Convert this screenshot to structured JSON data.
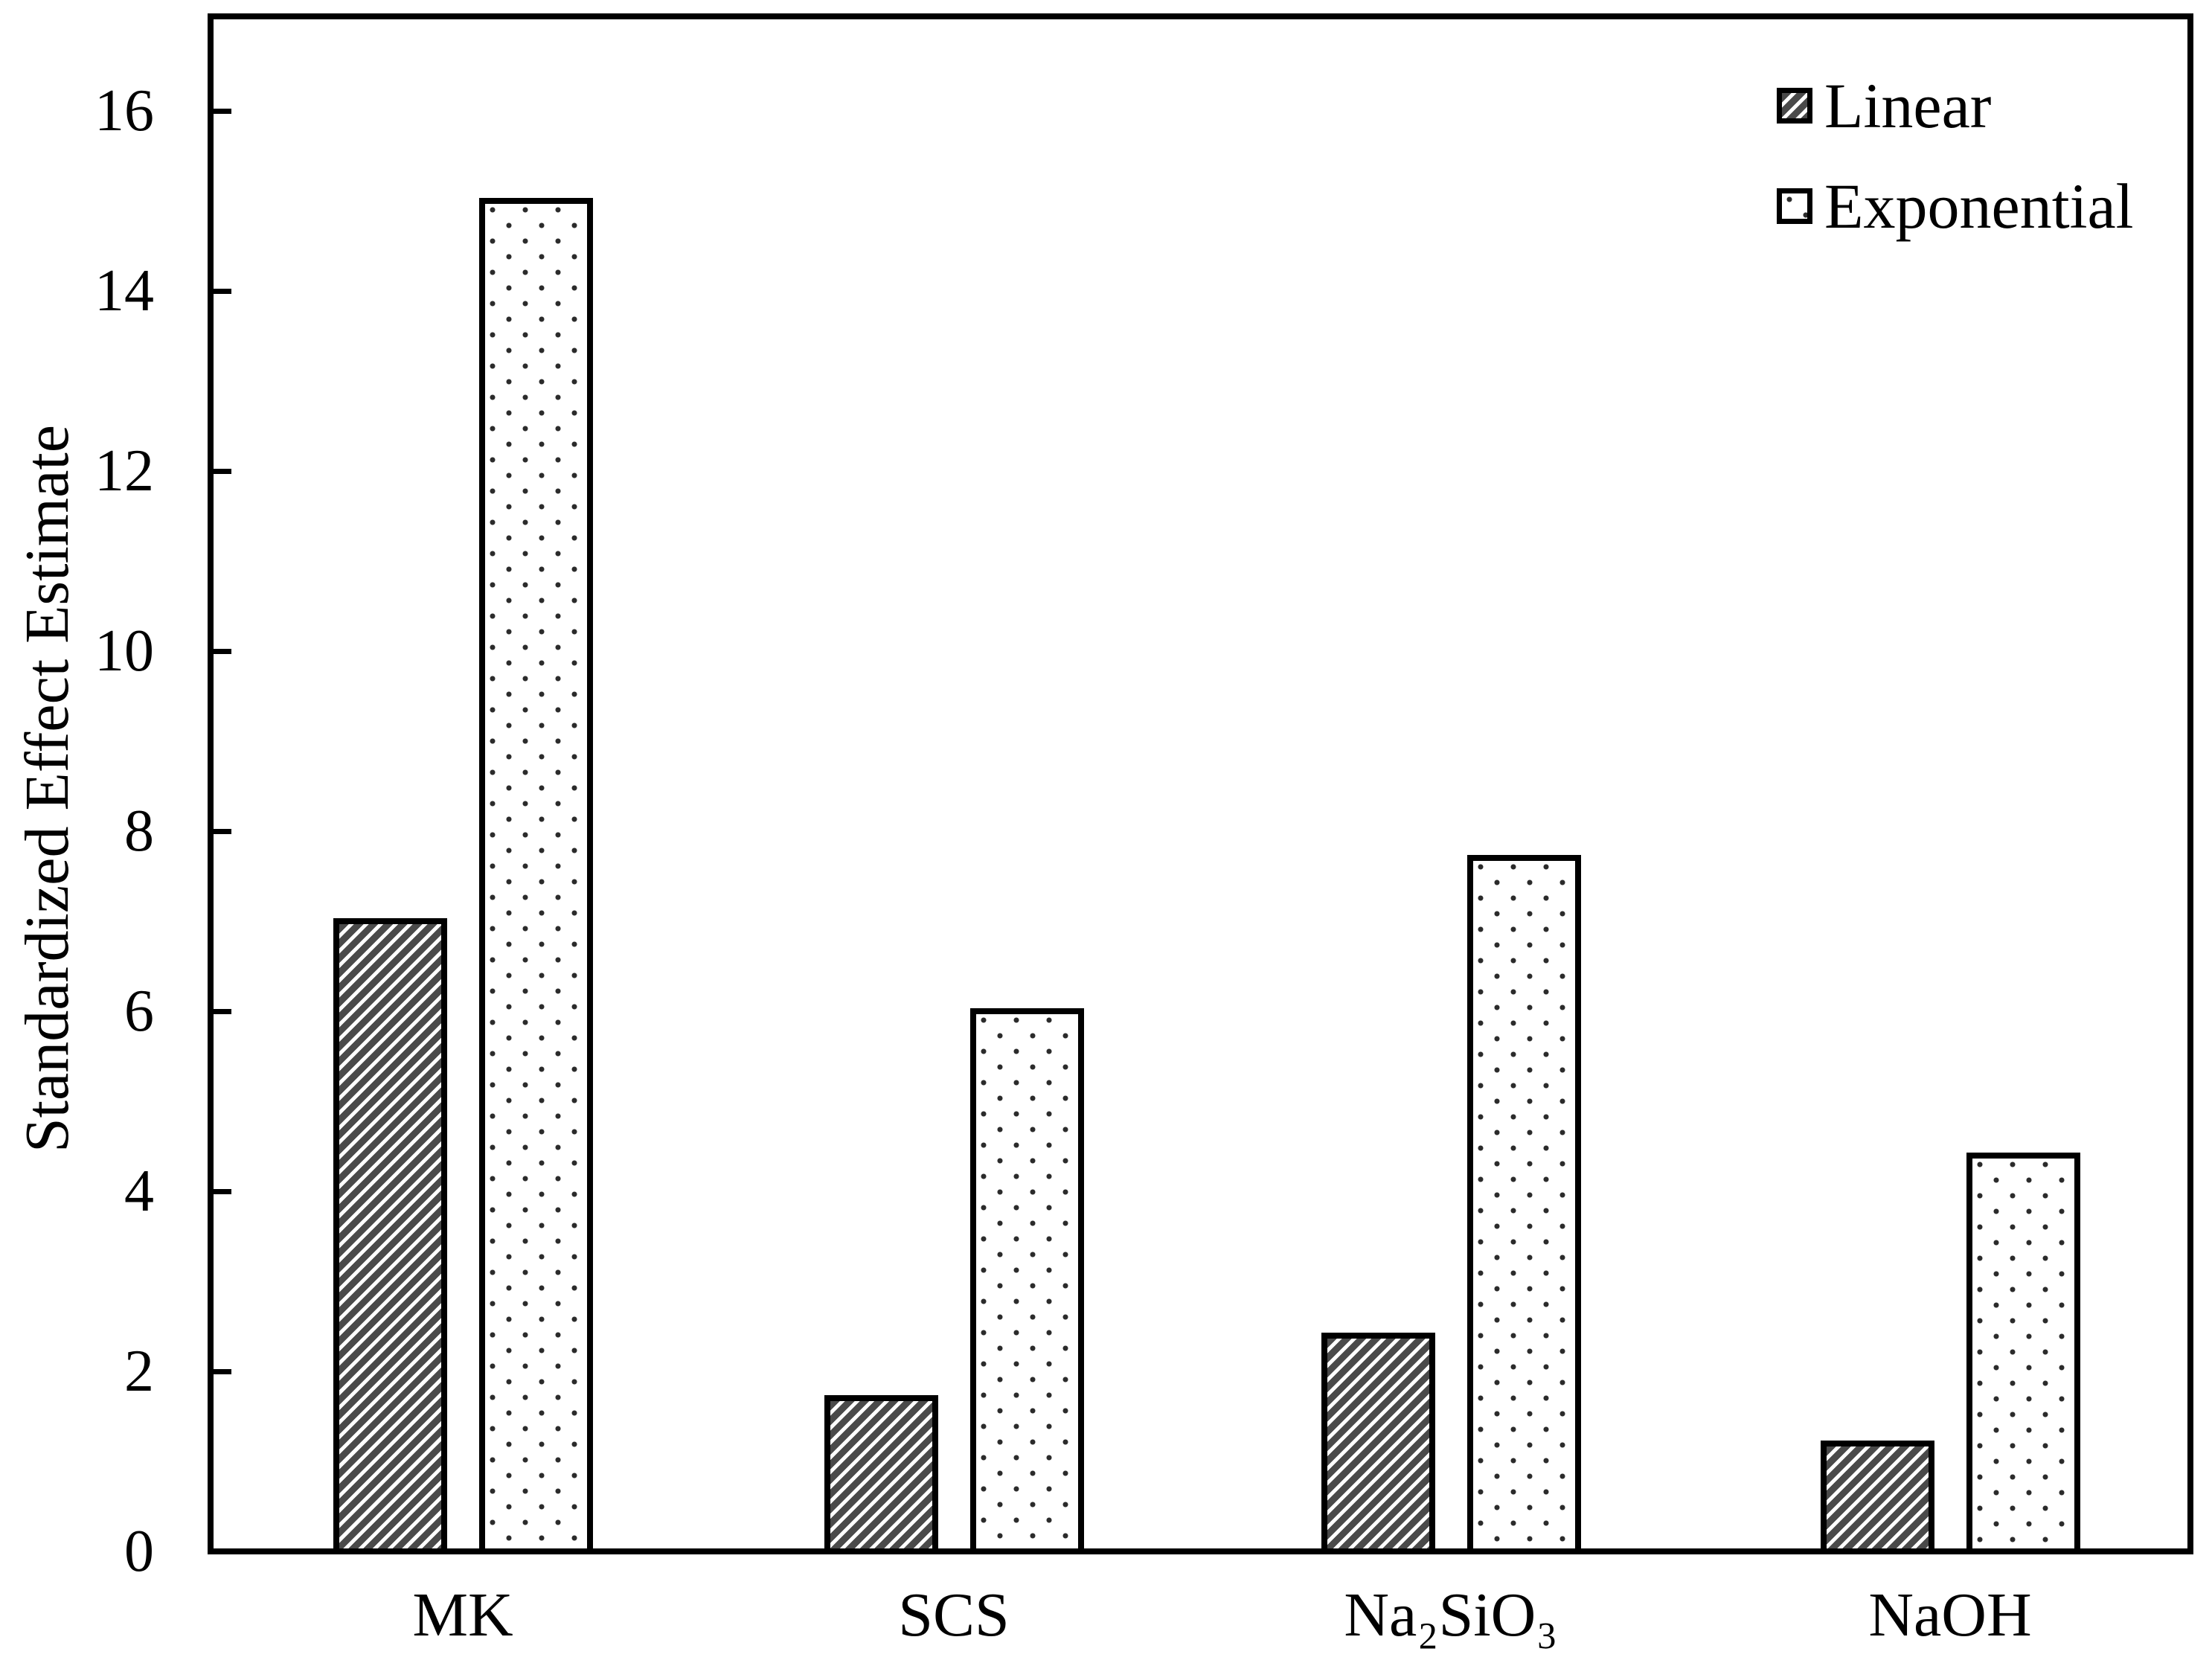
{
  "figure": {
    "background_color": "#ffffff",
    "frame_color": "#000000",
    "text_color": "#000000"
  },
  "y_axis": {
    "title": "Standardized Effect Estimate",
    "tick_labels": [
      "0",
      "2",
      "4",
      "6",
      "8",
      "10",
      "12",
      "14",
      "16"
    ]
  },
  "x_axis": {
    "categories": [
      "MK",
      "SCS",
      "Na₂SiO₃",
      "NaOH"
    ]
  },
  "legend": {
    "position": "top-right",
    "items": [
      {
        "label": "Linear",
        "pattern": "diagonal-hatch"
      },
      {
        "label": "Exponential",
        "pattern": "dots"
      }
    ]
  },
  "chart_data": {
    "type": "bar",
    "title": "",
    "categories": [
      "MK",
      "SCS",
      "Na₂SiO₃",
      "NaOH"
    ],
    "series": [
      {
        "name": "Linear",
        "pattern": "diagonal-hatch",
        "values": [
          7.0,
          1.7,
          2.4,
          1.2
        ]
      },
      {
        "name": "Exponential",
        "pattern": "dots",
        "values": [
          15.0,
          6.0,
          7.7,
          4.4
        ]
      }
    ],
    "xlabel": "",
    "ylabel": "Standardized Effect Estimate",
    "ylim": [
      0,
      17
    ],
    "yticks": [
      0,
      2,
      4,
      6,
      8,
      10,
      12,
      14,
      16
    ],
    "grid": false,
    "legend_position": "top-right",
    "bar_outline_color": "#000000",
    "hatch_color": "#4a4a4a",
    "dot_color": "#2b2b2b"
  }
}
